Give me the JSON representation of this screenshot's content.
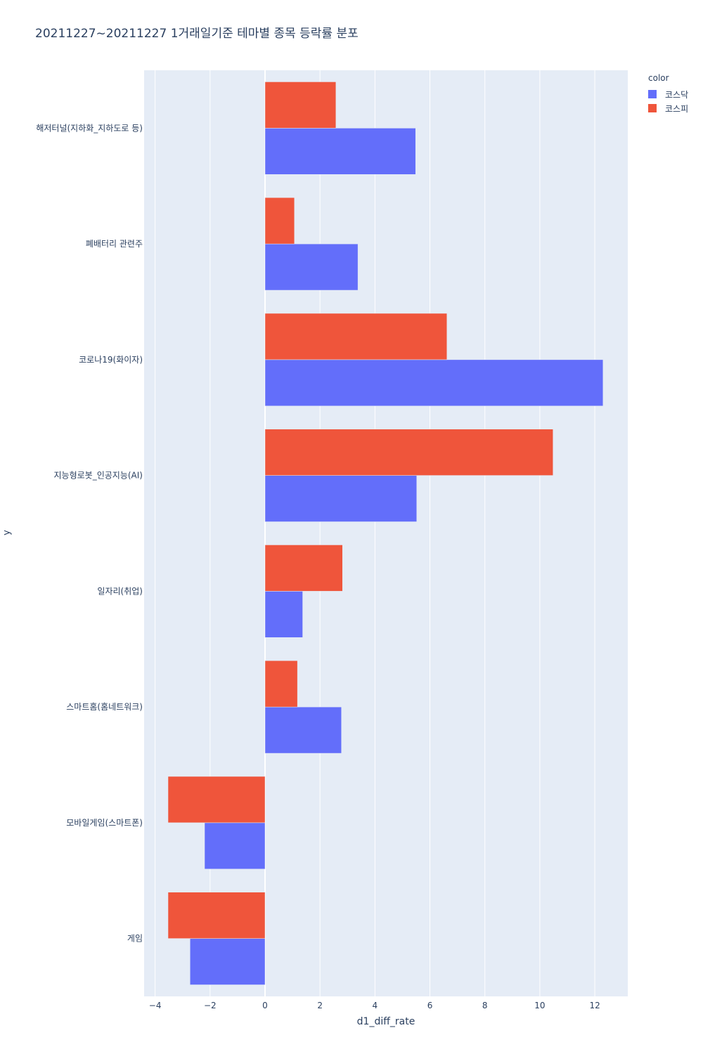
{
  "chart_data": {
    "type": "bar",
    "orientation": "horizontal",
    "barmode": "group",
    "title": "20211227~20211227 1거래일기준 테마별 종목 등락률 분포",
    "xlabel": "d1_diff_rate",
    "ylabel": "y",
    "xlim": [
      -4.4,
      13.2
    ],
    "xticks": [
      -4,
      -2,
      0,
      2,
      4,
      6,
      8,
      10,
      12
    ],
    "xtick_labels": [
      "−4",
      "−2",
      "0",
      "2",
      "4",
      "6",
      "8",
      "10",
      "12"
    ],
    "grid": true,
    "legend_title": "color",
    "legend_position": "top-right",
    "categories": [
      "해저터널(지하화_지하도로 등)",
      "폐배터리 관련주",
      "코로나19(화이자)",
      "지능형로봇_인공지능(AI)",
      "일자리(취업)",
      "스마트홈(홈네트워크)",
      "모바일게임(스마트폰)",
      "게임"
    ],
    "series": [
      {
        "name": "코스닥",
        "color": "#636efa",
        "values": [
          5.48,
          3.38,
          12.3,
          5.52,
          1.37,
          2.78,
          -2.2,
          -2.73
        ]
      },
      {
        "name": "코스피",
        "color": "#ef553b",
        "values": [
          2.58,
          1.07,
          6.62,
          10.48,
          2.82,
          1.18,
          -3.53,
          -3.53
        ]
      }
    ]
  }
}
